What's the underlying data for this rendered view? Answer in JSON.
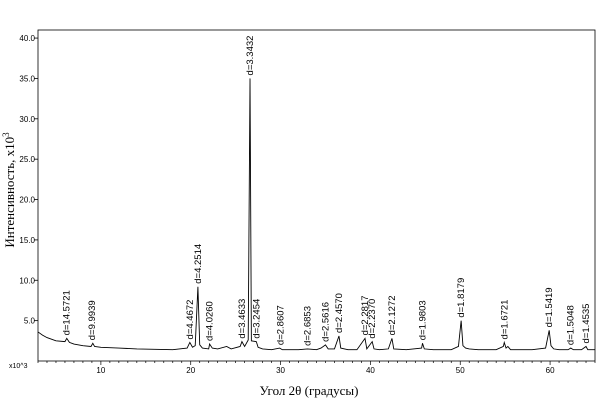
{
  "chart_data": {
    "type": "line",
    "xlabel": "Угол 2θ (градусы)",
    "ylabel_main": "Интенсивность, x10",
    "ylabel_exp": "3",
    "y_unit_label": "x10^3",
    "xlim": [
      3,
      65
    ],
    "ylim": [
      0,
      41
    ],
    "x_ticks": [
      10,
      20,
      30,
      40,
      50,
      60
    ],
    "x_tick_labels": [
      "10",
      "20",
      "30",
      "40",
      "50",
      "60"
    ],
    "y_ticks": [
      5,
      10,
      15,
      20,
      25,
      30,
      35,
      40
    ],
    "y_tick_labels": [
      "5.0",
      "10.0",
      "15.0",
      "20.0",
      "25.0",
      "30.0",
      "35.0",
      "40.0"
    ],
    "line_color": "#000000",
    "series": [
      {
        "values": [
          [
            3.0,
            3.6
          ],
          [
            3.5,
            3.2
          ],
          [
            4.0,
            2.9
          ],
          [
            5.0,
            2.5
          ],
          [
            6.0,
            2.4
          ],
          [
            6.2,
            2.8
          ],
          [
            6.5,
            2.3
          ],
          [
            7.0,
            2.1
          ],
          [
            8.0,
            1.9
          ],
          [
            8.9,
            1.8
          ],
          [
            9.1,
            2.2
          ],
          [
            9.3,
            1.8
          ],
          [
            10.0,
            1.7
          ],
          [
            12.0,
            1.6
          ],
          [
            14.0,
            1.5
          ],
          [
            16.0,
            1.45
          ],
          [
            18.0,
            1.4
          ],
          [
            19.6,
            1.6
          ],
          [
            19.9,
            2.3
          ],
          [
            20.2,
            1.7
          ],
          [
            20.5,
            1.9
          ],
          [
            20.8,
            9.2
          ],
          [
            21.0,
            2.0
          ],
          [
            21.3,
            1.6
          ],
          [
            22.0,
            1.5
          ],
          [
            22.1,
            2.1
          ],
          [
            22.4,
            1.6
          ],
          [
            23.0,
            1.5
          ],
          [
            24.0,
            1.8
          ],
          [
            24.5,
            1.5
          ],
          [
            25.5,
            1.8
          ],
          [
            25.7,
            2.4
          ],
          [
            26.0,
            1.8
          ],
          [
            26.4,
            2.6
          ],
          [
            26.6,
            35.0
          ],
          [
            26.75,
            2.5
          ],
          [
            27.3,
            2.4
          ],
          [
            27.5,
            1.7
          ],
          [
            28.0,
            1.5
          ],
          [
            29.0,
            1.4
          ],
          [
            29.9,
            1.6
          ],
          [
            30.2,
            1.4
          ],
          [
            31.0,
            1.4
          ],
          [
            32.0,
            1.4
          ],
          [
            33.0,
            1.5
          ],
          [
            34.0,
            1.4
          ],
          [
            34.5,
            1.6
          ],
          [
            35.0,
            2.0
          ],
          [
            35.3,
            1.5
          ],
          [
            36.0,
            1.5
          ],
          [
            36.5,
            3.1
          ],
          [
            36.7,
            1.6
          ],
          [
            37.5,
            1.4
          ],
          [
            38.5,
            1.4
          ],
          [
            39.4,
            2.8
          ],
          [
            39.6,
            1.5
          ],
          [
            40.2,
            2.4
          ],
          [
            40.4,
            1.5
          ],
          [
            41.0,
            1.4
          ],
          [
            42.0,
            1.5
          ],
          [
            42.4,
            2.8
          ],
          [
            42.6,
            1.5
          ],
          [
            44.0,
            1.4
          ],
          [
            45.7,
            1.6
          ],
          [
            45.8,
            2.2
          ],
          [
            46.0,
            1.5
          ],
          [
            47.0,
            1.4
          ],
          [
            48.0,
            1.4
          ],
          [
            49.0,
            1.4
          ],
          [
            49.8,
            1.8
          ],
          [
            50.1,
            5.0
          ],
          [
            50.3,
            1.9
          ],
          [
            50.6,
            1.6
          ],
          [
            51.0,
            1.5
          ],
          [
            52.0,
            1.4
          ],
          [
            53.0,
            1.4
          ],
          [
            54.0,
            1.4
          ],
          [
            54.8,
            1.8
          ],
          [
            54.9,
            2.3
          ],
          [
            55.1,
            1.6
          ],
          [
            55.3,
            1.8
          ],
          [
            55.6,
            1.4
          ],
          [
            57.0,
            1.4
          ],
          [
            58.0,
            1.4
          ],
          [
            59.5,
            1.6
          ],
          [
            59.9,
            3.8
          ],
          [
            60.1,
            1.9
          ],
          [
            60.4,
            1.5
          ],
          [
            61.0,
            1.4
          ],
          [
            62.0,
            1.4
          ],
          [
            62.3,
            1.6
          ],
          [
            62.6,
            1.4
          ],
          [
            63.5,
            1.4
          ],
          [
            64.0,
            1.8
          ],
          [
            64.2,
            1.4
          ],
          [
            65.0,
            1.4
          ]
        ]
      }
    ],
    "annotations": [
      {
        "x": 6.2,
        "y": 2.8,
        "text": "d=14.5721"
      },
      {
        "x": 9.0,
        "y": 2.2,
        "text": "d=9.9939"
      },
      {
        "x": 19.9,
        "y": 2.3,
        "text": "d=4.4672"
      },
      {
        "x": 20.8,
        "y": 9.2,
        "text": "d=4.2514"
      },
      {
        "x": 22.1,
        "y": 2.1,
        "text": "d=4.0260"
      },
      {
        "x": 25.7,
        "y": 2.4,
        "text": "d=3.4633"
      },
      {
        "x": 26.6,
        "y": 35.0,
        "text": "d=3.3432"
      },
      {
        "x": 27.3,
        "y": 2.4,
        "text": "d=3.2454"
      },
      {
        "x": 30.0,
        "y": 1.6,
        "text": "d=2.8607"
      },
      {
        "x": 33.0,
        "y": 1.5,
        "text": "d=2.6853"
      },
      {
        "x": 35.0,
        "y": 2.0,
        "text": "d=2.5616"
      },
      {
        "x": 36.5,
        "y": 3.1,
        "text": "d=2.4570"
      },
      {
        "x": 39.4,
        "y": 2.8,
        "text": "d=2.2817"
      },
      {
        "x": 40.2,
        "y": 2.4,
        "text": "d=2.2370"
      },
      {
        "x": 42.4,
        "y": 2.8,
        "text": "d=2.1272"
      },
      {
        "x": 45.8,
        "y": 2.2,
        "text": "d=1.9803"
      },
      {
        "x": 50.1,
        "y": 5.0,
        "text": "d=1.8179"
      },
      {
        "x": 54.9,
        "y": 2.3,
        "text": "d=1.6721"
      },
      {
        "x": 59.9,
        "y": 3.8,
        "text": "d=1.5419"
      },
      {
        "x": 62.3,
        "y": 1.6,
        "text": "d=1.5048"
      },
      {
        "x": 64.0,
        "y": 1.8,
        "text": "d=1.4535"
      }
    ]
  }
}
